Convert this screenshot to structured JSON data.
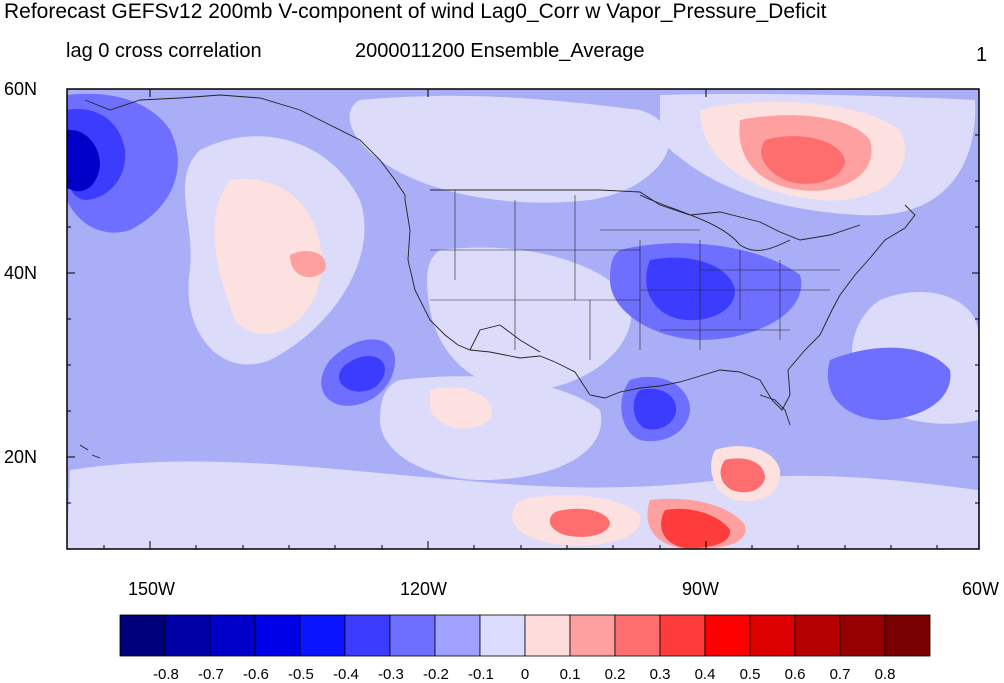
{
  "title": "Reforecast GEFSv12 200mb V-component of wind Lag0_Corr w Vapor_Pressure_Deficit",
  "subtitle_left": "lag 0 cross correlation",
  "subtitle_center": "2000011200 Ensemble_Average",
  "subtitle_right": "1",
  "map": {
    "lat_ticks": [
      "60N",
      "40N",
      "20N"
    ],
    "lon_ticks": [
      "150W",
      "120W",
      "90W",
      "60W"
    ],
    "lon_range": [
      -160,
      -60
    ],
    "lat_range": [
      10,
      60
    ]
  },
  "colorbar": {
    "labels": [
      "-0.8",
      "-0.7",
      "-0.6",
      "-0.5",
      "-0.4",
      "-0.3",
      "-0.2",
      "-0.1",
      "0",
      "0.1",
      "0.2",
      "0.3",
      "0.4",
      "0.5",
      "0.6",
      "0.7",
      "0.8"
    ],
    "colors": [
      "#00007a",
      "#0000a6",
      "#0000c8",
      "#0000e6",
      "#0a14ff",
      "#3c3cff",
      "#6e6eff",
      "#a0a0ff",
      "#dcdcff",
      "#ffdcdc",
      "#ffa0a0",
      "#ff6e6e",
      "#ff3c3c",
      "#ff0000",
      "#dc0000",
      "#b40000",
      "#960000",
      "#780000"
    ]
  },
  "colors": {
    "background_field": "#a9aef7",
    "light_blue": "#dcdcfa",
    "light_pink": "#fde0e0"
  }
}
